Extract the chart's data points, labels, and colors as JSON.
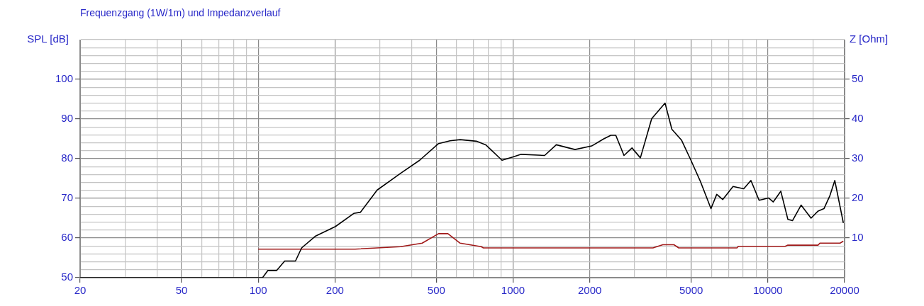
{
  "chart_data": {
    "type": "line",
    "title": "Frequenzgang (1W/1m) und Impedanzverlauf",
    "ylabel": "SPL [dB]",
    "y2label": "Z [Ohm]",
    "xlim": [
      20,
      20000
    ],
    "xticks": [
      20,
      {
        "value": 30,
        "label": null
      },
      {
        "value": 40,
        "label": null
      },
      50,
      {
        "value": 60,
        "label": null
      },
      {
        "value": 70,
        "label": null
      },
      {
        "value": 80,
        "label": null
      },
      {
        "value": 90,
        "label": null
      },
      100,
      200,
      {
        "value": 300,
        "label": null
      },
      {
        "value": 400,
        "label": null
      },
      500,
      {
        "value": 600,
        "label": null
      },
      {
        "value": 700,
        "label": null
      },
      {
        "value": 800,
        "label": null
      },
      {
        "value": 900,
        "label": null
      },
      1000,
      2000,
      {
        "value": 3000,
        "label": null
      },
      {
        "value": 4000,
        "label": null
      },
      5000,
      {
        "value": 6000,
        "label": null
      },
      {
        "value": 7000,
        "label": null
      },
      {
        "value": 8000,
        "label": null
      },
      {
        "value": 9000,
        "label": null
      },
      10000,
      {
        "value": 15000,
        "label": null
      },
      20000
    ],
    "log": "x",
    "ylim": [
      50,
      110
    ],
    "yticks": [
      50,
      {
        "value": 52,
        "label": null
      },
      {
        "value": 54,
        "label": null
      },
      {
        "value": 56,
        "label": null
      },
      {
        "value": 58,
        "label": null
      },
      60,
      {
        "value": 62,
        "label": null
      },
      {
        "value": 64,
        "label": null
      },
      {
        "value": 66,
        "label": null
      },
      {
        "value": 68,
        "label": null
      },
      70,
      {
        "value": 72,
        "label": null
      },
      {
        "value": 74,
        "label": null
      },
      {
        "value": 76,
        "label": null
      },
      {
        "value": 78,
        "label": null
      },
      80,
      {
        "value": 82,
        "label": null
      },
      {
        "value": 84,
        "label": null
      },
      {
        "value": 86,
        "label": null
      },
      {
        "value": 88,
        "label": null
      },
      90,
      {
        "value": 92,
        "label": null
      },
      {
        "value": 94,
        "label": null
      },
      {
        "value": 96,
        "label": null
      },
      {
        "value": 98,
        "label": null
      },
      100,
      {
        "value": 102,
        "label": null
      },
      {
        "value": 104,
        "label": null
      },
      {
        "value": 106,
        "label": null
      },
      {
        "value": 108,
        "label": null
      },
      {
        "value": 110,
        "label": null
      }
    ],
    "y2lim": [
      0,
      60
    ],
    "y2ticks": [
      10,
      20,
      30,
      40,
      50
    ],
    "grid": true,
    "legend": false,
    "marker": "none",
    "line_style": "solid",
    "series": [
      {
        "color": "#000000",
        "x": [
          20,
          100,
          104,
          109,
          118,
          127,
          140,
          148,
          168,
          201,
          237,
          252,
          293,
          362,
          430,
          510,
          566,
          620,
          718,
          781,
          905,
          1006,
          1076,
          1330,
          1478,
          1750,
          2035,
          2270,
          2420,
          2530,
          2725,
          2930,
          3160,
          3500,
          3950,
          4200,
          4580,
          4990,
          5440,
          5980,
          6300,
          6650,
          7300,
          8040,
          8580,
          9240,
          10060,
          10500,
          11240,
          11980,
          12500,
          13500,
          14770,
          15750,
          16600,
          17520,
          18310,
          19780
        ],
        "values": [
          50,
          50,
          50,
          51.8,
          51.8,
          54.2,
          54.2,
          57.5,
          60.5,
          62.9,
          66.2,
          66.5,
          72.1,
          76.3,
          79.6,
          83.8,
          84.5,
          84.8,
          84.4,
          83.5,
          79.6,
          80.5,
          81.1,
          80.8,
          83.5,
          82.3,
          83.2,
          85,
          85.9,
          85.9,
          80.8,
          82.7,
          80.2,
          90.1,
          94,
          87.4,
          84.7,
          79.6,
          74.2,
          67.4,
          71,
          69.7,
          73,
          72.4,
          74.5,
          69.5,
          70.1,
          69.1,
          71.8,
          64.7,
          64.4,
          68.3,
          65,
          66.8,
          67.4,
          70.7,
          74.5,
          63.8
        ]
      },
      {
        "color": "#a01818",
        "axis": "y2",
        "x": [
          100,
          240,
          362,
          440,
          510,
          555,
          620,
          750,
          765,
          3540,
          3870,
          4280,
          4470,
          7560,
          7660,
          11700,
          11980,
          15750,
          16000,
          19200,
          19780
        ],
        "values": [
          7.2,
          7.2,
          7.8,
          8.7,
          11.1,
          11.1,
          8.7,
          7.8,
          7.5,
          7.5,
          8.3,
          8.3,
          7.5,
          7.5,
          7.9,
          7.9,
          8.2,
          8.2,
          8.7,
          8.7,
          9.2
        ]
      }
    ]
  }
}
